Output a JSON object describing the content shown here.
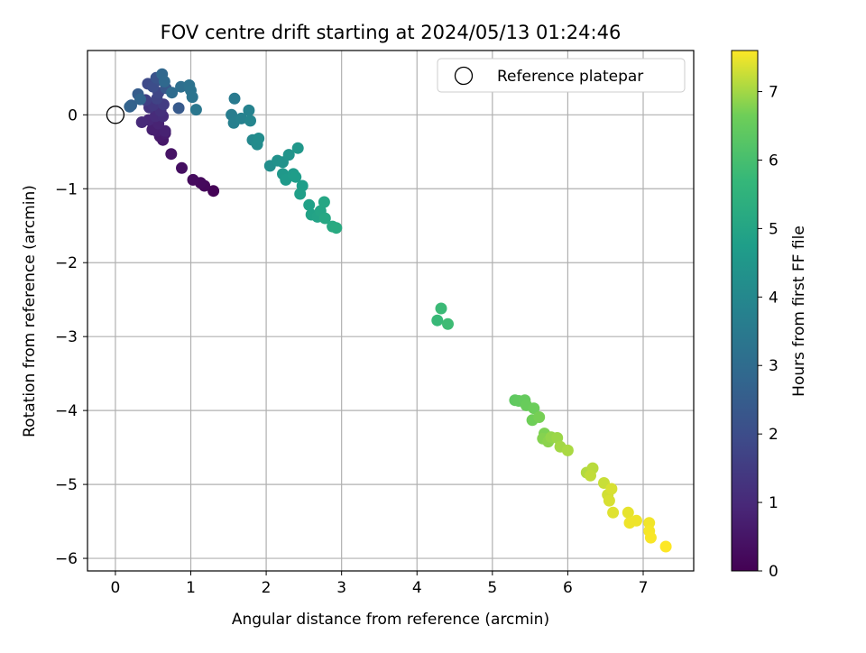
{
  "chart_data": {
    "type": "scatter",
    "title": "FOV centre drift starting at 2024/05/13 01:24:46",
    "xlabel": "Angular distance from reference (arcmin)",
    "ylabel": "Rotation from reference (arcmin)",
    "xlim": [
      -0.37,
      7.67
    ],
    "ylim": [
      -6.17,
      0.87
    ],
    "xticks": [
      0,
      1,
      2,
      3,
      4,
      5,
      6,
      7
    ],
    "yticks": [
      0,
      -1,
      -2,
      -3,
      -4,
      -5,
      -6
    ],
    "grid": true,
    "legend": {
      "position": "top-right",
      "entries": [
        {
          "label": "Reference platepar",
          "marker": "open-circle",
          "x": 0,
          "y": 0
        }
      ]
    },
    "colorbar": {
      "label": "Hours from first FF file",
      "colormap": "viridis",
      "range": [
        0,
        7.6
      ],
      "ticks": [
        0,
        1,
        2,
        3,
        4,
        5,
        6,
        7
      ]
    },
    "points": [
      {
        "x": 1.3,
        "y": -1.03,
        "t": 0.05
      },
      {
        "x": 1.18,
        "y": -0.96,
        "t": 0.15
      },
      {
        "x": 1.13,
        "y": -0.92,
        "t": 0.2
      },
      {
        "x": 1.03,
        "y": -0.88,
        "t": 0.25
      },
      {
        "x": 0.88,
        "y": -0.72,
        "t": 0.35
      },
      {
        "x": 0.74,
        "y": -0.53,
        "t": 0.45
      },
      {
        "x": 0.63,
        "y": -0.34,
        "t": 0.55
      },
      {
        "x": 0.59,
        "y": -0.29,
        "t": 0.6
      },
      {
        "x": 0.66,
        "y": -0.25,
        "t": 0.65
      },
      {
        "x": 0.55,
        "y": -0.22,
        "t": 0.7
      },
      {
        "x": 0.49,
        "y": -0.2,
        "t": 0.75
      },
      {
        "x": 0.66,
        "y": -0.22,
        "t": 0.8
      },
      {
        "x": 0.57,
        "y": -0.12,
        "t": 0.85
      },
      {
        "x": 0.44,
        "y": -0.07,
        "t": 0.95
      },
      {
        "x": 0.35,
        "y": -0.1,
        "t": 1.0
      },
      {
        "x": 0.53,
        "y": -0.02,
        "t": 1.05
      },
      {
        "x": 0.63,
        "y": -0.02,
        "t": 1.1
      },
      {
        "x": 0.6,
        "y": 0.05,
        "t": 1.2
      },
      {
        "x": 0.45,
        "y": 0.1,
        "t": 1.3
      },
      {
        "x": 0.5,
        "y": 0.13,
        "t": 1.4
      },
      {
        "x": 0.64,
        "y": 0.14,
        "t": 1.5
      },
      {
        "x": 0.4,
        "y": 0.2,
        "t": 1.6
      },
      {
        "x": 0.55,
        "y": 0.22,
        "t": 1.7
      },
      {
        "x": 0.57,
        "y": 0.3,
        "t": 1.8
      },
      {
        "x": 0.43,
        "y": 0.42,
        "t": 1.9
      },
      {
        "x": 0.5,
        "y": 0.38,
        "t": 2.0
      },
      {
        "x": 0.59,
        "y": 0.47,
        "t": 2.1
      },
      {
        "x": 0.54,
        "y": 0.5,
        "t": 2.2
      },
      {
        "x": 0.67,
        "y": 0.36,
        "t": 2.3
      },
      {
        "x": 0.84,
        "y": 0.09,
        "t": 2.4
      },
      {
        "x": 0.3,
        "y": 0.28,
        "t": 2.5
      },
      {
        "x": 0.21,
        "y": 0.13,
        "t": 2.6
      },
      {
        "x": 0.19,
        "y": 0.11,
        "t": 2.7
      },
      {
        "x": 0.33,
        "y": 0.21,
        "t": 2.75
      },
      {
        "x": 0.62,
        "y": 0.55,
        "t": 2.85
      },
      {
        "x": 0.65,
        "y": 0.45,
        "t": 2.9
      },
      {
        "x": 0.75,
        "y": 0.3,
        "t": 3.0
      },
      {
        "x": 0.87,
        "y": 0.38,
        "t": 3.1
      },
      {
        "x": 0.98,
        "y": 0.4,
        "t": 3.2
      },
      {
        "x": 1.0,
        "y": 0.33,
        "t": 3.25
      },
      {
        "x": 1.02,
        "y": 0.24,
        "t": 3.3
      },
      {
        "x": 1.07,
        "y": 0.07,
        "t": 3.4
      },
      {
        "x": 1.58,
        "y": 0.22,
        "t": 3.5
      },
      {
        "x": 1.54,
        "y": 0.0,
        "t": 3.6
      },
      {
        "x": 1.57,
        "y": -0.11,
        "t": 3.7
      },
      {
        "x": 1.67,
        "y": -0.05,
        "t": 3.75
      },
      {
        "x": 1.77,
        "y": 0.06,
        "t": 3.8
      },
      {
        "x": 1.79,
        "y": -0.08,
        "t": 3.9
      },
      {
        "x": 1.82,
        "y": -0.34,
        "t": 4.0
      },
      {
        "x": 1.88,
        "y": -0.4,
        "t": 4.1
      },
      {
        "x": 1.9,
        "y": -0.32,
        "t": 4.15
      },
      {
        "x": 2.05,
        "y": -0.69,
        "t": 4.2
      },
      {
        "x": 2.15,
        "y": -0.62,
        "t": 4.3
      },
      {
        "x": 2.22,
        "y": -0.64,
        "t": 4.35
      },
      {
        "x": 2.3,
        "y": -0.54,
        "t": 4.4
      },
      {
        "x": 2.42,
        "y": -0.45,
        "t": 4.5
      },
      {
        "x": 2.22,
        "y": -0.8,
        "t": 4.55
      },
      {
        "x": 2.26,
        "y": -0.88,
        "t": 4.6
      },
      {
        "x": 2.36,
        "y": -0.8,
        "t": 4.65
      },
      {
        "x": 2.39,
        "y": -0.84,
        "t": 4.7
      },
      {
        "x": 2.48,
        "y": -0.96,
        "t": 4.75
      },
      {
        "x": 2.45,
        "y": -1.07,
        "t": 4.8
      },
      {
        "x": 2.57,
        "y": -1.22,
        "t": 4.85
      },
      {
        "x": 2.6,
        "y": -1.35,
        "t": 4.9
      },
      {
        "x": 2.68,
        "y": -1.38,
        "t": 4.95
      },
      {
        "x": 2.72,
        "y": -1.3,
        "t": 5.0
      },
      {
        "x": 2.77,
        "y": -1.18,
        "t": 5.05
      },
      {
        "x": 2.78,
        "y": -1.4,
        "t": 5.1
      },
      {
        "x": 2.88,
        "y": -1.51,
        "t": 5.15
      },
      {
        "x": 2.93,
        "y": -1.53,
        "t": 5.2
      },
      {
        "x": 4.27,
        "y": -2.78,
        "t": 5.75
      },
      {
        "x": 4.32,
        "y": -2.62,
        "t": 5.8
      },
      {
        "x": 4.41,
        "y": -2.83,
        "t": 5.85
      },
      {
        "x": 5.3,
        "y": -3.86,
        "t": 6.4
      },
      {
        "x": 5.35,
        "y": -3.87,
        "t": 6.45
      },
      {
        "x": 5.43,
        "y": -3.86,
        "t": 6.5
      },
      {
        "x": 5.45,
        "y": -3.93,
        "t": 6.55
      },
      {
        "x": 5.55,
        "y": -3.97,
        "t": 6.6
      },
      {
        "x": 5.53,
        "y": -4.13,
        "t": 6.65
      },
      {
        "x": 5.62,
        "y": -4.09,
        "t": 6.7
      },
      {
        "x": 5.69,
        "y": -4.31,
        "t": 6.75
      },
      {
        "x": 5.67,
        "y": -4.38,
        "t": 6.8
      },
      {
        "x": 5.74,
        "y": -4.42,
        "t": 6.85
      },
      {
        "x": 5.78,
        "y": -4.36,
        "t": 6.9
      },
      {
        "x": 5.86,
        "y": -4.37,
        "t": 6.95
      },
      {
        "x": 5.9,
        "y": -4.49,
        "t": 7.0
      },
      {
        "x": 6.0,
        "y": -4.54,
        "t": 7.05
      },
      {
        "x": 6.25,
        "y": -4.84,
        "t": 7.1
      },
      {
        "x": 6.33,
        "y": -4.78,
        "t": 7.15
      },
      {
        "x": 6.3,
        "y": -4.88,
        "t": 7.2
      },
      {
        "x": 6.48,
        "y": -4.98,
        "t": 7.25
      },
      {
        "x": 6.53,
        "y": -5.14,
        "t": 7.3
      },
      {
        "x": 6.55,
        "y": -5.22,
        "t": 7.35
      },
      {
        "x": 6.58,
        "y": -5.06,
        "t": 7.35
      },
      {
        "x": 6.6,
        "y": -5.38,
        "t": 7.4
      },
      {
        "x": 6.8,
        "y": -5.38,
        "t": 7.45
      },
      {
        "x": 6.82,
        "y": -5.52,
        "t": 7.5
      },
      {
        "x": 6.91,
        "y": -5.49,
        "t": 7.5
      },
      {
        "x": 7.08,
        "y": -5.52,
        "t": 7.52
      },
      {
        "x": 7.08,
        "y": -5.63,
        "t": 7.55
      },
      {
        "x": 7.1,
        "y": -5.72,
        "t": 7.57
      },
      {
        "x": 7.3,
        "y": -5.84,
        "t": 7.6
      }
    ]
  }
}
